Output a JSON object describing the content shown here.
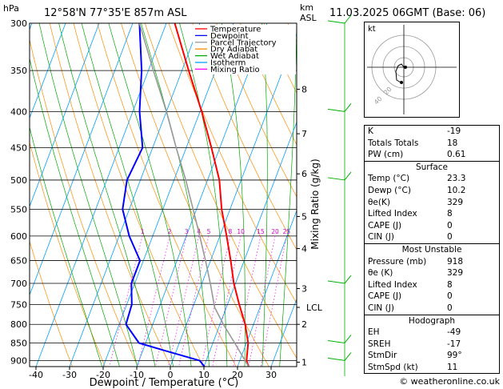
{
  "header": {
    "pressure_unit": "hPa",
    "station": "12°58'N  77°35'E  857m  ASL",
    "km_label": "km",
    "asl_label": "ASL",
    "valid_time": "11.03.2025  06GMT  (Base: 06)"
  },
  "legend": [
    {
      "label": "Temperature",
      "color": "#ff0000",
      "dash": false
    },
    {
      "label": "Dewpoint",
      "color": "#0000ff",
      "dash": false
    },
    {
      "label": "Parcel Trajectory",
      "color": "#999999",
      "dash": false
    },
    {
      "label": "Dry Adiabat",
      "color": "#ff8c00",
      "dash": false
    },
    {
      "label": "Wet Adiabat",
      "color": "#00aa00",
      "dash": false
    },
    {
      "label": "Isotherm",
      "color": "#00a0ff",
      "dash": false
    },
    {
      "label": "Mixing Ratio",
      "color": "#ff00ff",
      "dash": true
    }
  ],
  "chart_data": {
    "type": "line",
    "title": "12°58'N  77°35'E  857m  ASL",
    "xlabel": "Dewpoint / Temperature (°C)",
    "ylabel": "hPa",
    "ylabel_right": "Mixing Ratio (g/kg)",
    "x_ticks": [
      -40,
      -30,
      -20,
      -10,
      0,
      10,
      20,
      30
    ],
    "pressure_levels": [
      300,
      350,
      400,
      450,
      500,
      550,
      600,
      650,
      700,
      750,
      800,
      850,
      900
    ],
    "xlim": [
      -43,
      38
    ],
    "ylim": [
      918,
      300
    ],
    "skew": "temperature lines slanted to the right with height",
    "km_ticks": [
      {
        "label": "1",
        "p": 905
      },
      {
        "label": "2",
        "p": 800
      },
      {
        "label": "3",
        "p": 712
      },
      {
        "label": "4",
        "p": 625
      },
      {
        "label": "5",
        "p": 563
      },
      {
        "label": "6",
        "p": 490
      },
      {
        "label": "7",
        "p": 430
      },
      {
        "label": "8",
        "p": 372
      }
    ],
    "lcl": {
      "label": "LCL",
      "p": 757
    },
    "mixing_ratio_labels": [
      "1",
      "2",
      "3",
      "4",
      "5",
      "8",
      "10",
      "15",
      "20",
      "25"
    ],
    "mixing_ratio_values": [
      1,
      2,
      3,
      4,
      5,
      8,
      10,
      15,
      20,
      25
    ],
    "series": [
      {
        "name": "Temperature",
        "color": "#ff0000",
        "points": [
          [
            918,
            23.3
          ],
          [
            900,
            22
          ],
          [
            850,
            20.5
          ],
          [
            800,
            17.5
          ],
          [
            750,
            13.5
          ],
          [
            700,
            9.5
          ],
          [
            650,
            6
          ],
          [
            600,
            2
          ],
          [
            550,
            -2.5
          ],
          [
            500,
            -6.5
          ],
          [
            450,
            -12.5
          ],
          [
            400,
            -19.5
          ],
          [
            350,
            -28
          ],
          [
            300,
            -37.5
          ]
        ]
      },
      {
        "name": "Dewpoint",
        "color": "#0000ff",
        "points": [
          [
            918,
            10.2
          ],
          [
            900,
            8
          ],
          [
            870,
            -4
          ],
          [
            850,
            -12
          ],
          [
            800,
            -18
          ],
          [
            750,
            -18.5
          ],
          [
            700,
            -21
          ],
          [
            650,
            -21
          ],
          [
            600,
            -27
          ],
          [
            550,
            -32
          ],
          [
            500,
            -34
          ],
          [
            450,
            -33
          ],
          [
            400,
            -38
          ],
          [
            350,
            -42
          ],
          [
            300,
            -48
          ]
        ]
      },
      {
        "name": "Parcel Trajectory",
        "color": "#999999",
        "points": [
          [
            918,
            23.3
          ],
          [
            850,
            16.5
          ],
          [
            800,
            11
          ],
          [
            757,
            6.5
          ],
          [
            700,
            2.5
          ],
          [
            650,
            -1.5
          ],
          [
            600,
            -6
          ],
          [
            550,
            -11
          ],
          [
            500,
            -16.5
          ],
          [
            450,
            -23
          ],
          [
            400,
            -30
          ],
          [
            350,
            -38.5
          ],
          [
            300,
            -48
          ]
        ]
      }
    ],
    "wind_barbs_p": [
      300,
      400,
      500,
      700,
      850,
      900
    ]
  },
  "hodograph": {
    "label": "kt",
    "ring_labels": [
      "40",
      "20"
    ]
  },
  "indices": [
    {
      "label": "K",
      "value": "-19"
    },
    {
      "label": "Totals Totals",
      "value": "18"
    },
    {
      "label": "PW (cm)",
      "value": "0.61"
    }
  ],
  "surface": {
    "title": "Surface",
    "rows": [
      {
        "label": "Temp (°C)",
        "value": "23.3"
      },
      {
        "label": "Dewp (°C)",
        "value": "10.2"
      },
      {
        "label": "θe(K)",
        "value": "329"
      },
      {
        "label": "Lifted Index",
        "value": "8"
      },
      {
        "label": "CAPE (J)",
        "value": "0"
      },
      {
        "label": "CIN (J)",
        "value": "0"
      }
    ]
  },
  "most_unstable": {
    "title": "Most Unstable",
    "rows": [
      {
        "label": "Pressure (mb)",
        "value": "918"
      },
      {
        "label": "θe (K)",
        "value": "329"
      },
      {
        "label": "Lifted Index",
        "value": "8"
      },
      {
        "label": "CAPE (J)",
        "value": "0"
      },
      {
        "label": "CIN (J)",
        "value": "0"
      }
    ]
  },
  "hodograph_table": {
    "title": "Hodograph",
    "rows": [
      {
        "label": "EH",
        "value": "-49"
      },
      {
        "label": "SREH",
        "value": "-17"
      },
      {
        "label": "StmDir",
        "value": "99°"
      },
      {
        "label": "StmSpd (kt)",
        "value": "11"
      }
    ]
  },
  "credit": "© weatheronline.co.uk"
}
